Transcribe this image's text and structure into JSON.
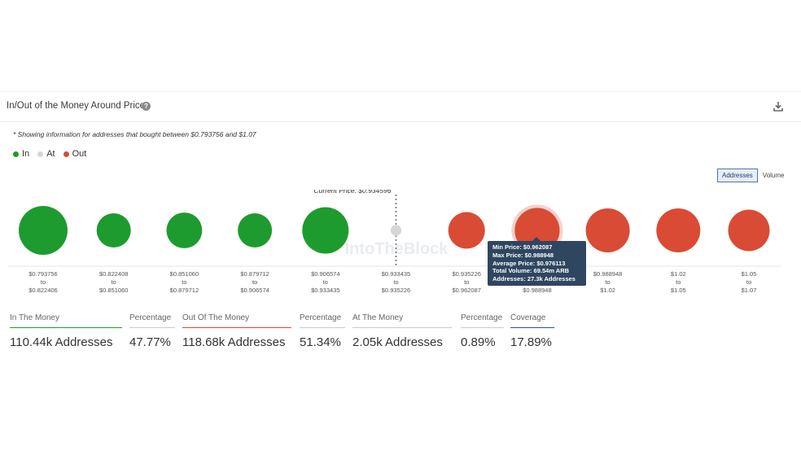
{
  "header": {
    "title": "In/Out of the Money Around Price",
    "note": "* Showing information for addresses that bought between $0.793756 and $1.07"
  },
  "legend": [
    {
      "label": "In",
      "color": "#1e9b2e"
    },
    {
      "label": "At",
      "color": "#d6d6d6"
    },
    {
      "label": "Out",
      "color": "#d94b35"
    }
  ],
  "toggle": {
    "addresses": "Addresses",
    "volume": "Volume"
  },
  "chart_data": {
    "type": "bubble",
    "current_price_label": "Current Price: $0.934596",
    "watermark": "IntoTheBlock",
    "buckets": [
      {
        "from": "$0.793756",
        "to": "$0.822406",
        "status": "in",
        "size": 1.0
      },
      {
        "from": "$0.822408",
        "to": "$0.851060",
        "status": "in",
        "size": 0.7
      },
      {
        "from": "$0.851060",
        "to": "$0.879712",
        "status": "in",
        "size": 0.73
      },
      {
        "from": "$0.879712",
        "to": "$0.906574",
        "status": "in",
        "size": 0.7
      },
      {
        "from": "$0.906574",
        "to": "$0.933435",
        "status": "in",
        "size": 0.95
      },
      {
        "from": "$0.933435",
        "to": "$0.935226",
        "status": "at",
        "size": 0.22
      },
      {
        "from": "$0.935226",
        "to": "$0.962087",
        "status": "out",
        "size": 0.75
      },
      {
        "from": "$0.962087",
        "to": "$0.988948",
        "status": "out",
        "size": 0.92
      },
      {
        "from": "$0.988948",
        "to": "$1.02",
        "status": "out",
        "size": 0.9
      },
      {
        "from": "$1.02",
        "to": "$1.05",
        "status": "out",
        "size": 0.9
      },
      {
        "from": "$1.05",
        "to": "$1.07",
        "status": "out",
        "size": 0.85
      }
    ],
    "to_word": "to",
    "colors": {
      "in": "#1e9b2e",
      "at": "#d6d6d6",
      "out": "#d94b35"
    }
  },
  "tooltip": {
    "min_price": "Min Price: $0.962087",
    "max_price": "Max Price: $0.988948",
    "avg_price": "Average Price: $0.976113",
    "total_volume": "Total Volume: 69.54m ARB",
    "addresses": "Addresses: 27.3k Addresses"
  },
  "stats": [
    {
      "label": "In The Money",
      "value": "110.44k Addresses",
      "line": "#1e9b2e"
    },
    {
      "label": "Percentage",
      "value": "47.77%",
      "line": "#cccccc"
    },
    {
      "label": "Out Of The Money",
      "value": "118.68k Addresses",
      "line": "#d94b35"
    },
    {
      "label": "Percentage",
      "value": "51.34%",
      "line": "#cccccc"
    },
    {
      "label": "At The Money",
      "value": "2.05k Addresses",
      "line": "#cccccc"
    },
    {
      "label": "Percentage",
      "value": "0.89%",
      "line": "#cccccc"
    },
    {
      "label": "Coverage",
      "value": "17.89%",
      "line": "#2f4aa8"
    }
  ]
}
